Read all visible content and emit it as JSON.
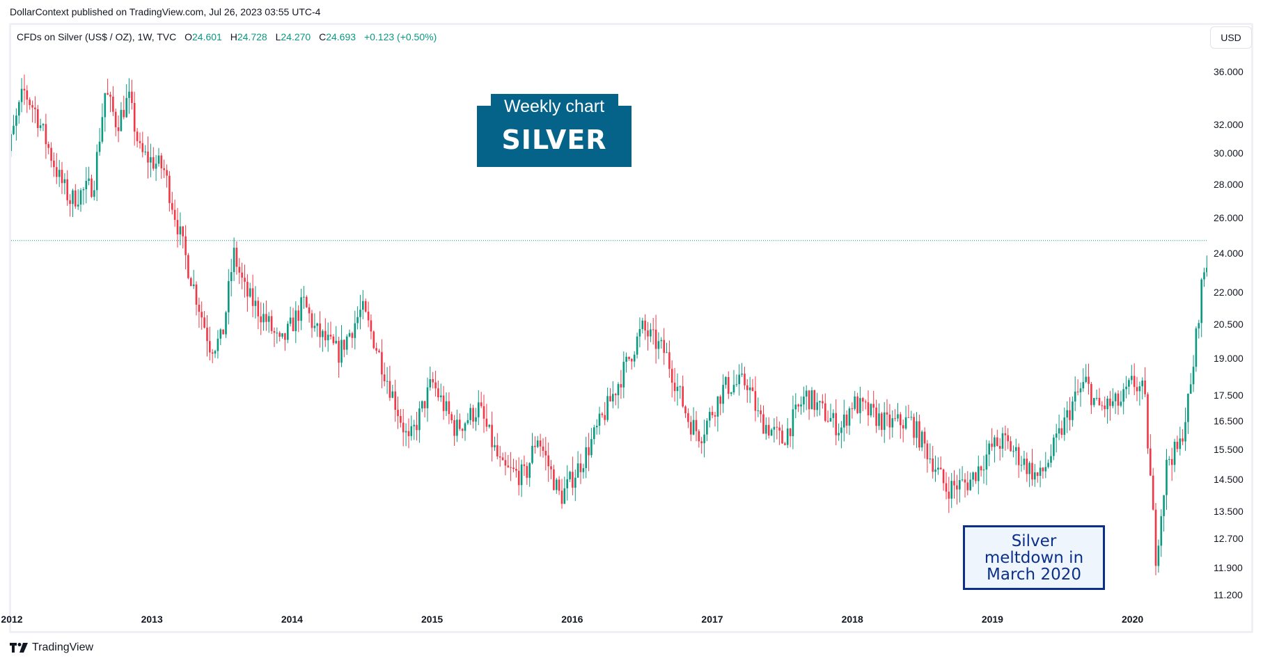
{
  "header": {
    "published": "DollarContext published on TradingView.com, Jul 26, 2023 03:55 UTC-4"
  },
  "legend": {
    "symbol": "CFDs on Silver (US$ / OZ), 1W, TVC",
    "open_label": "O",
    "open": "24.601",
    "high_label": "H",
    "high": "24.728",
    "low_label": "L",
    "low": "24.270",
    "close_label": "C",
    "close": "24.693",
    "change": "+0.123 (+0.50%)"
  },
  "currency_button": "USD",
  "title_box": {
    "line1": "Weekly chart",
    "line2": "SILVER"
  },
  "annotation": {
    "line1": "Silver",
    "line2": "meltdown in",
    "line3": "March 2020"
  },
  "footer": {
    "brand": "TradingView"
  },
  "colors": {
    "up": "#089981",
    "down": "#f23645",
    "title_bg": "#05638a",
    "note_border": "#0c2f8a",
    "note_bg": "#eef5fd",
    "last_price_line": "#089981"
  },
  "chart_data": {
    "type": "candlestick",
    "title": "Weekly chart SILVER",
    "symbol": "CFDs on Silver (US$ / OZ), 1W, TVC",
    "scale": "log",
    "ylim": [
      11.0,
      38.0
    ],
    "y_ticks": [
      "36.000",
      "32.000",
      "30.000",
      "28.000",
      "26.000",
      "24.000",
      "22.000",
      "20.500",
      "19.000",
      "17.500",
      "16.500",
      "15.500",
      "14.500",
      "13.500",
      "12.700",
      "11.900",
      "11.200"
    ],
    "x_ticks": [
      "2012",
      "2013",
      "2014",
      "2015",
      "2016",
      "2017",
      "2018",
      "2019",
      "2020"
    ],
    "last_price": 24.693,
    "annotations": [
      "Weekly chart SILVER",
      "Silver meltdown in March 2020"
    ],
    "keypoints": [
      {
        "date": "2011-12",
        "close": 28.0
      },
      {
        "date": "2012-02",
        "close": 34.5
      },
      {
        "date": "2012-03",
        "close": 33.0
      },
      {
        "date": "2012-05",
        "close": 28.5
      },
      {
        "date": "2012-06",
        "close": 27.0
      },
      {
        "date": "2012-08",
        "close": 28.0
      },
      {
        "date": "2012-09",
        "close": 34.5
      },
      {
        "date": "2012-10",
        "close": 32.0
      },
      {
        "date": "2012-11",
        "close": 34.0
      },
      {
        "date": "2012-12",
        "close": 30.0
      },
      {
        "date": "2013-02",
        "close": 29.0
      },
      {
        "date": "2013-04",
        "close": 23.5
      },
      {
        "date": "2013-06",
        "close": 19.5
      },
      {
        "date": "2013-07",
        "close": 19.8
      },
      {
        "date": "2013-08",
        "close": 24.0
      },
      {
        "date": "2013-09",
        "close": 22.0
      },
      {
        "date": "2013-11",
        "close": 20.5
      },
      {
        "date": "2013-12",
        "close": 19.5
      },
      {
        "date": "2014-02",
        "close": 21.5
      },
      {
        "date": "2014-03",
        "close": 20.2
      },
      {
        "date": "2014-05",
        "close": 19.2
      },
      {
        "date": "2014-07",
        "close": 21.2
      },
      {
        "date": "2014-08",
        "close": 19.8
      },
      {
        "date": "2014-10",
        "close": 17.0
      },
      {
        "date": "2014-11",
        "close": 15.7
      },
      {
        "date": "2015-01",
        "close": 18.0
      },
      {
        "date": "2015-03",
        "close": 16.2
      },
      {
        "date": "2015-05",
        "close": 17.0
      },
      {
        "date": "2015-07",
        "close": 14.8
      },
      {
        "date": "2015-09",
        "close": 14.6
      },
      {
        "date": "2015-10",
        "close": 16.0
      },
      {
        "date": "2015-12",
        "close": 13.9
      },
      {
        "date": "2016-02",
        "close": 15.2
      },
      {
        "date": "2016-04",
        "close": 17.0
      },
      {
        "date": "2016-07",
        "close": 20.3
      },
      {
        "date": "2016-09",
        "close": 19.2
      },
      {
        "date": "2016-11",
        "close": 16.5
      },
      {
        "date": "2016-12",
        "close": 16.0
      },
      {
        "date": "2017-02",
        "close": 17.8
      },
      {
        "date": "2017-04",
        "close": 18.0
      },
      {
        "date": "2017-05",
        "close": 16.6
      },
      {
        "date": "2017-07",
        "close": 15.8
      },
      {
        "date": "2017-09",
        "close": 17.5
      },
      {
        "date": "2017-12",
        "close": 16.2
      },
      {
        "date": "2018-01",
        "close": 17.2
      },
      {
        "date": "2018-04",
        "close": 16.4
      },
      {
        "date": "2018-06",
        "close": 16.5
      },
      {
        "date": "2018-08",
        "close": 15.0
      },
      {
        "date": "2018-09",
        "close": 14.2
      },
      {
        "date": "2018-11",
        "close": 14.4
      },
      {
        "date": "2019-01",
        "close": 15.6
      },
      {
        "date": "2019-02",
        "close": 15.8
      },
      {
        "date": "2019-05",
        "close": 14.5
      },
      {
        "date": "2019-06",
        "close": 15.3
      },
      {
        "date": "2019-08",
        "close": 17.3
      },
      {
        "date": "2019-09",
        "close": 18.0
      },
      {
        "date": "2019-10",
        "close": 17.0
      },
      {
        "date": "2019-12",
        "close": 17.2
      },
      {
        "date": "2020-01",
        "close": 18.0
      },
      {
        "date": "2020-02",
        "close": 17.6
      },
      {
        "date": "2020-03",
        "close": 12.2
      },
      {
        "date": "2020-04",
        "close": 15.2
      },
      {
        "date": "2020-05",
        "close": 15.5
      },
      {
        "date": "2020-06",
        "close": 17.8
      },
      {
        "date": "2020-07",
        "close": 22.8
      },
      {
        "date": "2020-08",
        "close": 24.69
      }
    ]
  }
}
